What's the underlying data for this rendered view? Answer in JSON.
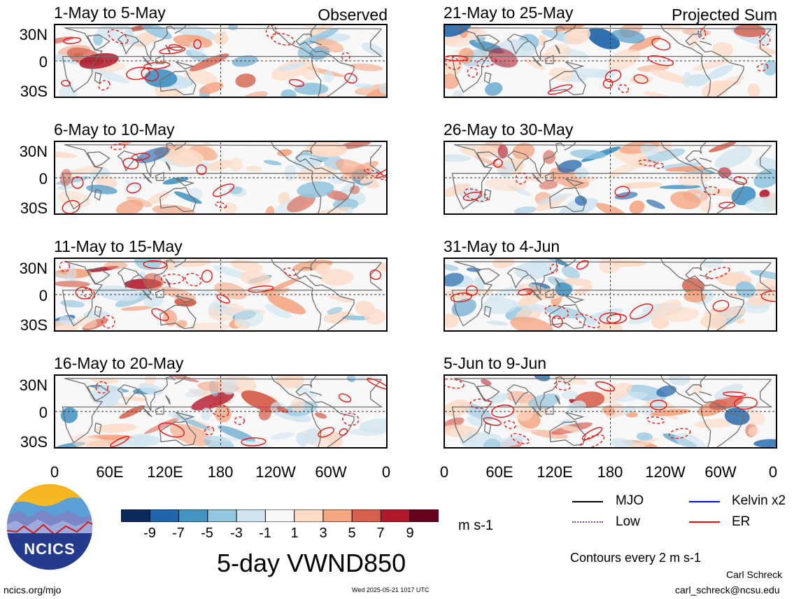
{
  "panels": [
    {
      "id": "p1",
      "title": "1-May to 5-May",
      "tag": "Observed",
      "seed": 11
    },
    {
      "id": "p2",
      "title": "6-May to 10-May",
      "tag": "",
      "seed": 23
    },
    {
      "id": "p3",
      "title": "11-May to 15-May",
      "tag": "",
      "seed": 37
    },
    {
      "id": "p4",
      "title": "16-May to 20-May",
      "tag": "",
      "seed": 41
    },
    {
      "id": "p5",
      "title": "21-May to 25-May",
      "tag": "Projected Sum",
      "seed": 53
    },
    {
      "id": "p6",
      "title": "26-May to 30-May",
      "tag": "",
      "seed": 67
    },
    {
      "id": "p7",
      "title": "31-May to 4-Jun",
      "tag": "",
      "seed": 71
    },
    {
      "id": "p8",
      "title": "5-Jun to 9-Jun",
      "tag": "",
      "seed": 89
    }
  ],
  "y_axis_labels": [
    "30N",
    "0",
    "30S"
  ],
  "x_axis_labels": [
    "0",
    "60E",
    "120E",
    "180",
    "120W",
    "60W",
    "0"
  ],
  "colorbar": {
    "colors": [
      "#0b2a5a",
      "#2166ac",
      "#4393c3",
      "#92c5de",
      "#d1e5f0",
      "#f7f7f7",
      "#fddbc7",
      "#f4a582",
      "#d6604d",
      "#b2182b",
      "#67001f"
    ],
    "labels": [
      "-9",
      "-7",
      "-5",
      "-3",
      "-1",
      "1",
      "3",
      "5",
      "7",
      "9"
    ],
    "units": "m s-1"
  },
  "legend": {
    "mjo": {
      "label": "MJO",
      "color": "#000000"
    },
    "kelvin": {
      "label": "Kelvin x2",
      "color": "#0000ff"
    },
    "low": {
      "label": "Low",
      "color": "#9933cc"
    },
    "er": {
      "label": "ER",
      "color": "#ff0000"
    },
    "contours_note": "Contours every 2 m s-1"
  },
  "main_title": "5-day VWND850",
  "logo_text": "NCICS",
  "footer": {
    "url": "ncics.org/mjo",
    "timestamp": "Wed 2025-05-21 1017 UTC",
    "author": "Carl Schreck",
    "email": "carl_schreck@ncsu.edu"
  }
}
